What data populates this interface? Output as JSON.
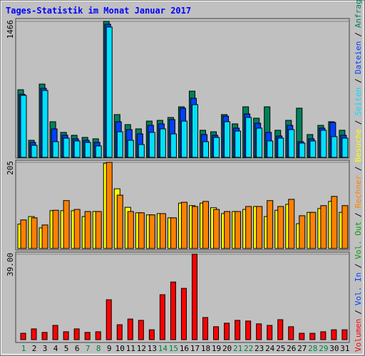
{
  "legend_separator": "/",
  "chart_data": [
    {
      "type": "bar",
      "title": "Tages-Statistik im Monat Januar 2017",
      "ylim": [
        0,
        1466
      ],
      "yticks": [
        1466
      ],
      "series": [
        {
          "name": "Anfragen",
          "color": "#00805c",
          "values": [
            729,
            184,
            790,
            384,
            269,
            238,
            215,
            200,
            1466,
            461,
            353,
            307,
            391,
            399,
            430,
            545,
            714,
            292,
            276,
            461,
            361,
            545,
            422,
            545,
            292,
            399,
            530,
            246,
            345,
            384,
            292
          ]
        },
        {
          "name": "Dateien",
          "color": "#0040ff",
          "values": [
            680,
            161,
            744,
            307,
            238,
            200,
            184,
            161,
            1435,
            384,
            299,
            253,
            345,
            361,
            407,
            530,
            637,
            246,
            238,
            445,
            315,
            468,
            368,
            269,
            230,
            345,
            169,
            200,
            315,
            376,
            238
          ]
        },
        {
          "name": "Seiten",
          "color": "#00e0ff",
          "values": [
            668,
            130,
            721,
            169,
            207,
            177,
            161,
            123,
            1405,
            276,
            184,
            138,
            269,
            307,
            253,
            391,
            568,
            169,
            215,
            384,
            284,
            430,
            315,
            177,
            207,
            299,
            154,
            177,
            292,
            223,
            207
          ]
        }
      ]
    },
    {
      "type": "bar",
      "ylim": [
        0,
        205
      ],
      "yticks": [
        205
      ],
      "series": [
        {
          "name": "Besuche",
          "color": "#ffff00",
          "values": [
            58,
            76,
            49,
            90,
            90,
            90,
            76,
            88,
            203,
            142,
            98,
            85,
            80,
            83,
            73,
            108,
            102,
            108,
            97,
            83,
            88,
            93,
            100,
            76,
            91,
            105,
            59,
            86,
            95,
            112,
            86
          ]
        },
        {
          "name": "Rechner",
          "color": "#ff8000",
          "values": [
            68,
            73,
            56,
            91,
            114,
            93,
            88,
            88,
            205,
            127,
            88,
            85,
            80,
            83,
            73,
            110,
            100,
            112,
            93,
            88,
            88,
            100,
            100,
            114,
            100,
            117,
            78,
            86,
            102,
            124,
            102
          ]
        }
      ]
    },
    {
      "type": "bar",
      "ylim": [
        0,
        39
      ],
      "yticks": [
        {
          "value": 39,
          "label": "39.00"
        }
      ],
      "categories": [
        "1",
        "2",
        "3",
        "4",
        "5",
        "6",
        "7",
        "8",
        "9",
        "10",
        "11",
        "12",
        "13",
        "14",
        "15",
        "16",
        "17",
        "18",
        "19",
        "20",
        "21",
        "22",
        "23",
        "24",
        "25",
        "26",
        "27",
        "28",
        "29",
        "30",
        "31"
      ],
      "category_colors": [
        "#008040",
        "#000000",
        "#000000",
        "#000000",
        "#000000",
        "#000000",
        "#008040",
        "#008040",
        "#000000",
        "#000000",
        "#000000",
        "#000000",
        "#000000",
        "#008040",
        "#008040",
        "#000000",
        "#000000",
        "#000000",
        "#000000",
        "#000000",
        "#008040",
        "#008040",
        "#000000",
        "#000000",
        "#000000",
        "#000000",
        "#000000",
        "#008040",
        "#008040",
        "#000000",
        "#000000"
      ],
      "series": [
        {
          "name": "Volumen",
          "color": "#ff0000",
          "values": [
            2.9,
            4.9,
            3.3,
            6.5,
            3.6,
            4.9,
            3.3,
            3.6,
            18.2,
            6.8,
            9.4,
            8.8,
            4.5,
            20.5,
            26.3,
            23.4,
            39,
            10.1,
            5.9,
            7.5,
            8.8,
            8.5,
            7.2,
            6.5,
            9.1,
            5.9,
            2.9,
            2.9,
            3.6,
            4.5,
            4.5
          ]
        }
      ],
      "legend_entries": [
        {
          "name": "Vol. In",
          "color": "#0040ff"
        },
        {
          "name": "Vol. Out",
          "color": "#00a000"
        }
      ]
    }
  ]
}
